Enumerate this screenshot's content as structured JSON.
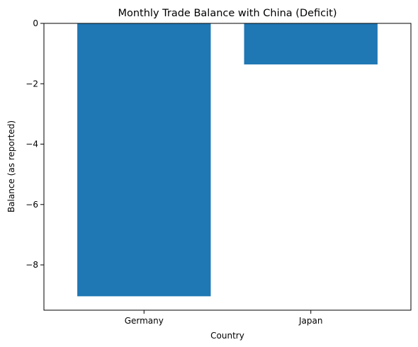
{
  "chart_data": {
    "type": "bar",
    "title": "Monthly Trade Balance with China (Deficit)",
    "xlabel": "Country",
    "ylabel": "Balance (as reported)",
    "categories": [
      "Germany",
      "Japan"
    ],
    "values": [
      -9.04,
      -1.36
    ],
    "ylim": [
      -9.5,
      0
    ],
    "yticks": [
      0,
      -2,
      -4,
      -6,
      -8
    ],
    "ytick_labels": [
      "0",
      "−2",
      "−4",
      "−6",
      "−8"
    ],
    "bar_color": "#1f77b4",
    "grid": false,
    "legend": "none"
  }
}
